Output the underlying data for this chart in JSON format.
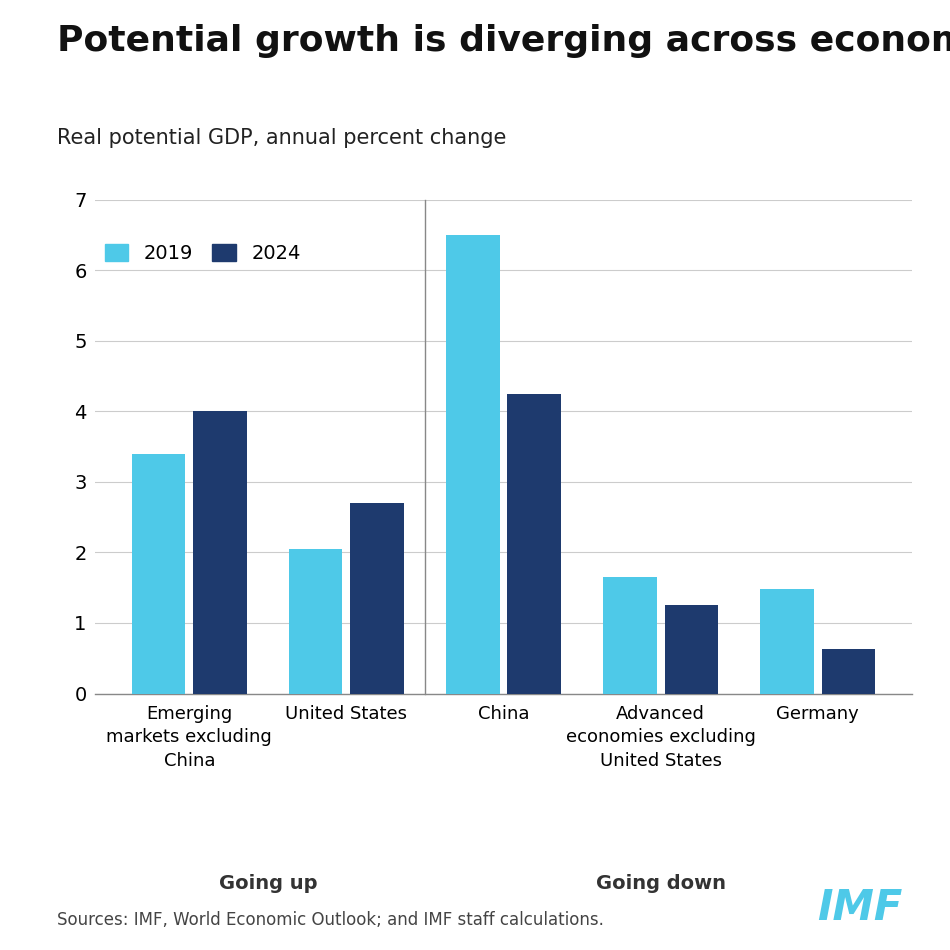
{
  "title": "Potential growth is diverging across economies",
  "subtitle": "Real potential GDP, annual percent change",
  "categories": [
    "Emerging\nmarkets excluding\nChina",
    "United States",
    "China",
    "Advanced\neconomies excluding\nUnited States",
    "Germany"
  ],
  "values_2019": [
    3.4,
    2.05,
    6.5,
    1.65,
    1.48
  ],
  "values_2024": [
    4.0,
    2.7,
    4.25,
    1.25,
    0.63
  ],
  "color_2019": "#4EC9E8",
  "color_2024": "#1E3A6E",
  "ylim": [
    0,
    7
  ],
  "yticks": [
    0,
    1,
    2,
    3,
    4,
    5,
    6,
    7
  ],
  "group_labels": [
    "Going up",
    "Going down"
  ],
  "source_text": "Sources: IMF, World Economic Outlook; and IMF staff calculations.",
  "imf_label": "IMF",
  "legend_2019": "2019",
  "legend_2024": "2024",
  "background_color": "#FFFFFF",
  "title_fontsize": 26,
  "subtitle_fontsize": 15,
  "tick_fontsize": 14,
  "label_fontsize": 13,
  "group_label_fontsize": 14,
  "source_fontsize": 12,
  "imf_fontsize": 30
}
